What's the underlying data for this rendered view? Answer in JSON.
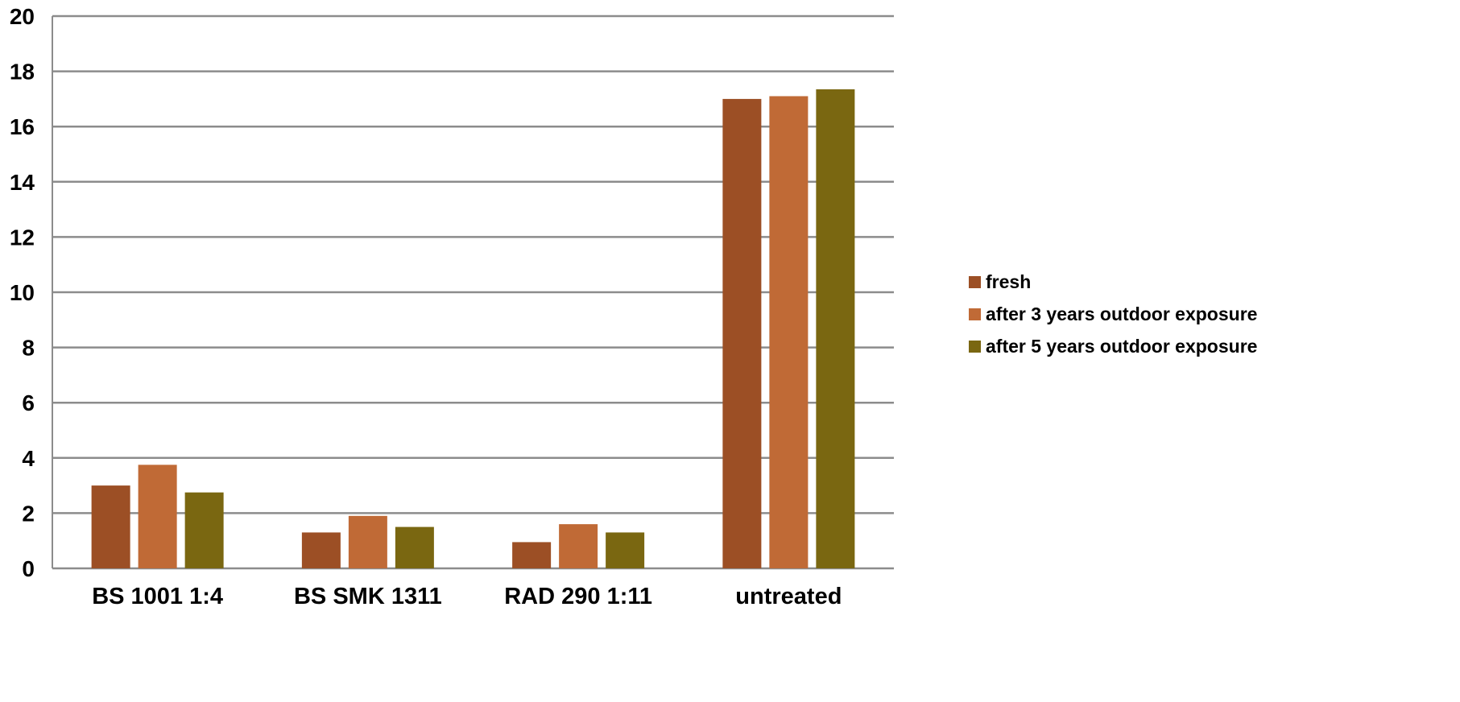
{
  "chart_data": {
    "type": "bar",
    "categories": [
      "BS 1001 1:4",
      "BS SMK 1311",
      "RAD 290 1:11",
      "untreated"
    ],
    "series": [
      {
        "name": "fresh",
        "values": [
          3.0,
          1.3,
          0.95,
          17.0
        ],
        "color": "#9C4F25"
      },
      {
        "name": "after 3 years outdoor exposure",
        "values": [
          3.75,
          1.9,
          1.6,
          17.1
        ],
        "color": "#C06A36"
      },
      {
        "name": "after 5 years outdoor exposure",
        "values": [
          2.75,
          1.5,
          1.3,
          17.35
        ],
        "color": "#7A6711"
      }
    ],
    "ylim": [
      0,
      20
    ],
    "yticks": [
      "0",
      "2",
      "4",
      "6",
      "8",
      "10",
      "12",
      "14",
      "16",
      "18",
      "20"
    ],
    "grid": true,
    "legend_position": "right",
    "title": "",
    "xlabel": "",
    "ylabel": ""
  }
}
